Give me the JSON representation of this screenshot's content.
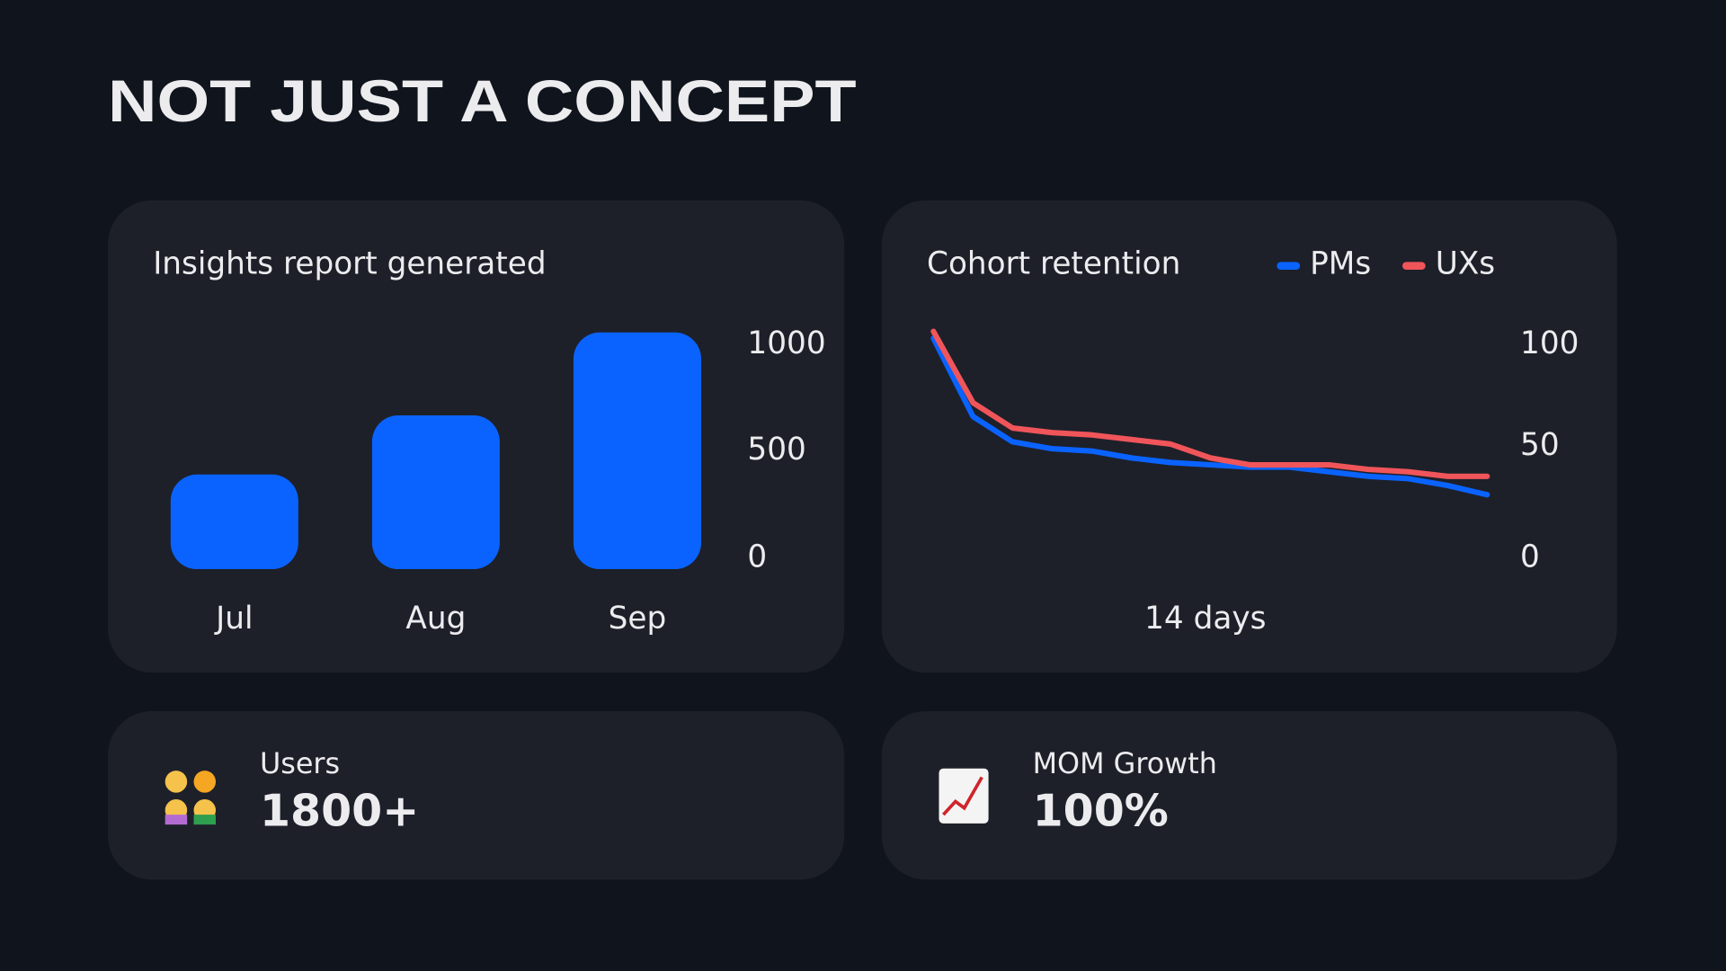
{
  "header": {
    "title": "NOT JUST A CONCEPT"
  },
  "chart_data": [
    {
      "type": "bar",
      "title": "Insights report generated",
      "categories": [
        "Jul",
        "Aug",
        "Sep"
      ],
      "values": [
        400,
        650,
        1000
      ],
      "color": "#0a63ff",
      "ylim": [
        0,
        1000
      ],
      "yticks": [
        0,
        500,
        1000
      ]
    },
    {
      "type": "line",
      "title": "Cohort retention",
      "x_label": "14 days",
      "series": [
        {
          "name": "PMs",
          "color": "#0a63ff",
          "values": [
            97,
            63,
            52,
            49,
            48,
            45,
            43,
            42,
            41,
            41,
            39,
            37,
            36,
            33,
            29
          ]
        },
        {
          "name": "UXs",
          "color": "#f0555a",
          "values": [
            100,
            69,
            58,
            56,
            55,
            53,
            51,
            45,
            42,
            42,
            42,
            40,
            39,
            37,
            37
          ]
        }
      ],
      "ylim": [
        0,
        100
      ],
      "yticks": [
        0,
        50,
        100
      ]
    }
  ],
  "stats": [
    {
      "label": "Users",
      "value": "1800+"
    },
    {
      "label": "MOM Growth",
      "value": "100%"
    }
  ]
}
